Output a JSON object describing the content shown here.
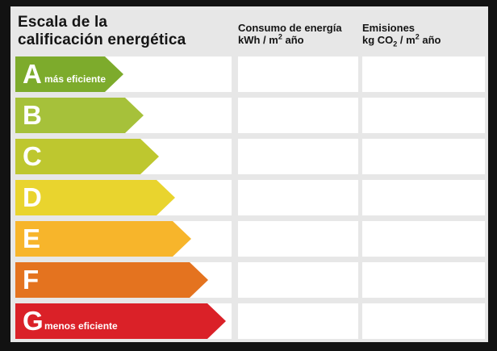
{
  "header": {
    "title_line1": "Escala de la",
    "title_line2": "calificación energética",
    "consumo": {
      "title": "Consumo de energía",
      "unit_pre": "kWh / m",
      "unit_sup": "2",
      "unit_post": " año"
    },
    "emisiones": {
      "title": "Emisiones",
      "unit_pre": "kg CO",
      "unit_sub": "2",
      "unit_mid": " / m",
      "unit_sup": "2",
      "unit_post": " año"
    }
  },
  "scale": {
    "ratings": [
      {
        "letter": "A",
        "label": "más eficiente",
        "color": "#7dab2c",
        "arrow_width": 134
      },
      {
        "letter": "B",
        "label": "",
        "color": "#a6c13a",
        "arrow_width": 159
      },
      {
        "letter": "C",
        "label": "",
        "color": "#bec72f",
        "arrow_width": 178
      },
      {
        "letter": "D",
        "label": "",
        "color": "#e9d42e",
        "arrow_width": 198
      },
      {
        "letter": "E",
        "label": "",
        "color": "#f7b52b",
        "arrow_width": 218
      },
      {
        "letter": "F",
        "label": "",
        "color": "#e4731f",
        "arrow_width": 239
      },
      {
        "letter": "G",
        "label": "menos eficiente",
        "color": "#da2128",
        "arrow_width": 261
      }
    ],
    "consumo_values": [
      "",
      "",
      "",
      "",
      "",
      "",
      ""
    ],
    "emisiones_values": [
      "",
      "",
      "",
      "",
      "",
      "",
      ""
    ]
  },
  "colors": {
    "frame": "#121212",
    "background": "#e7e7e7",
    "cell": "#ffffff",
    "text": "#141414",
    "arrow_text": "#ffffff"
  }
}
